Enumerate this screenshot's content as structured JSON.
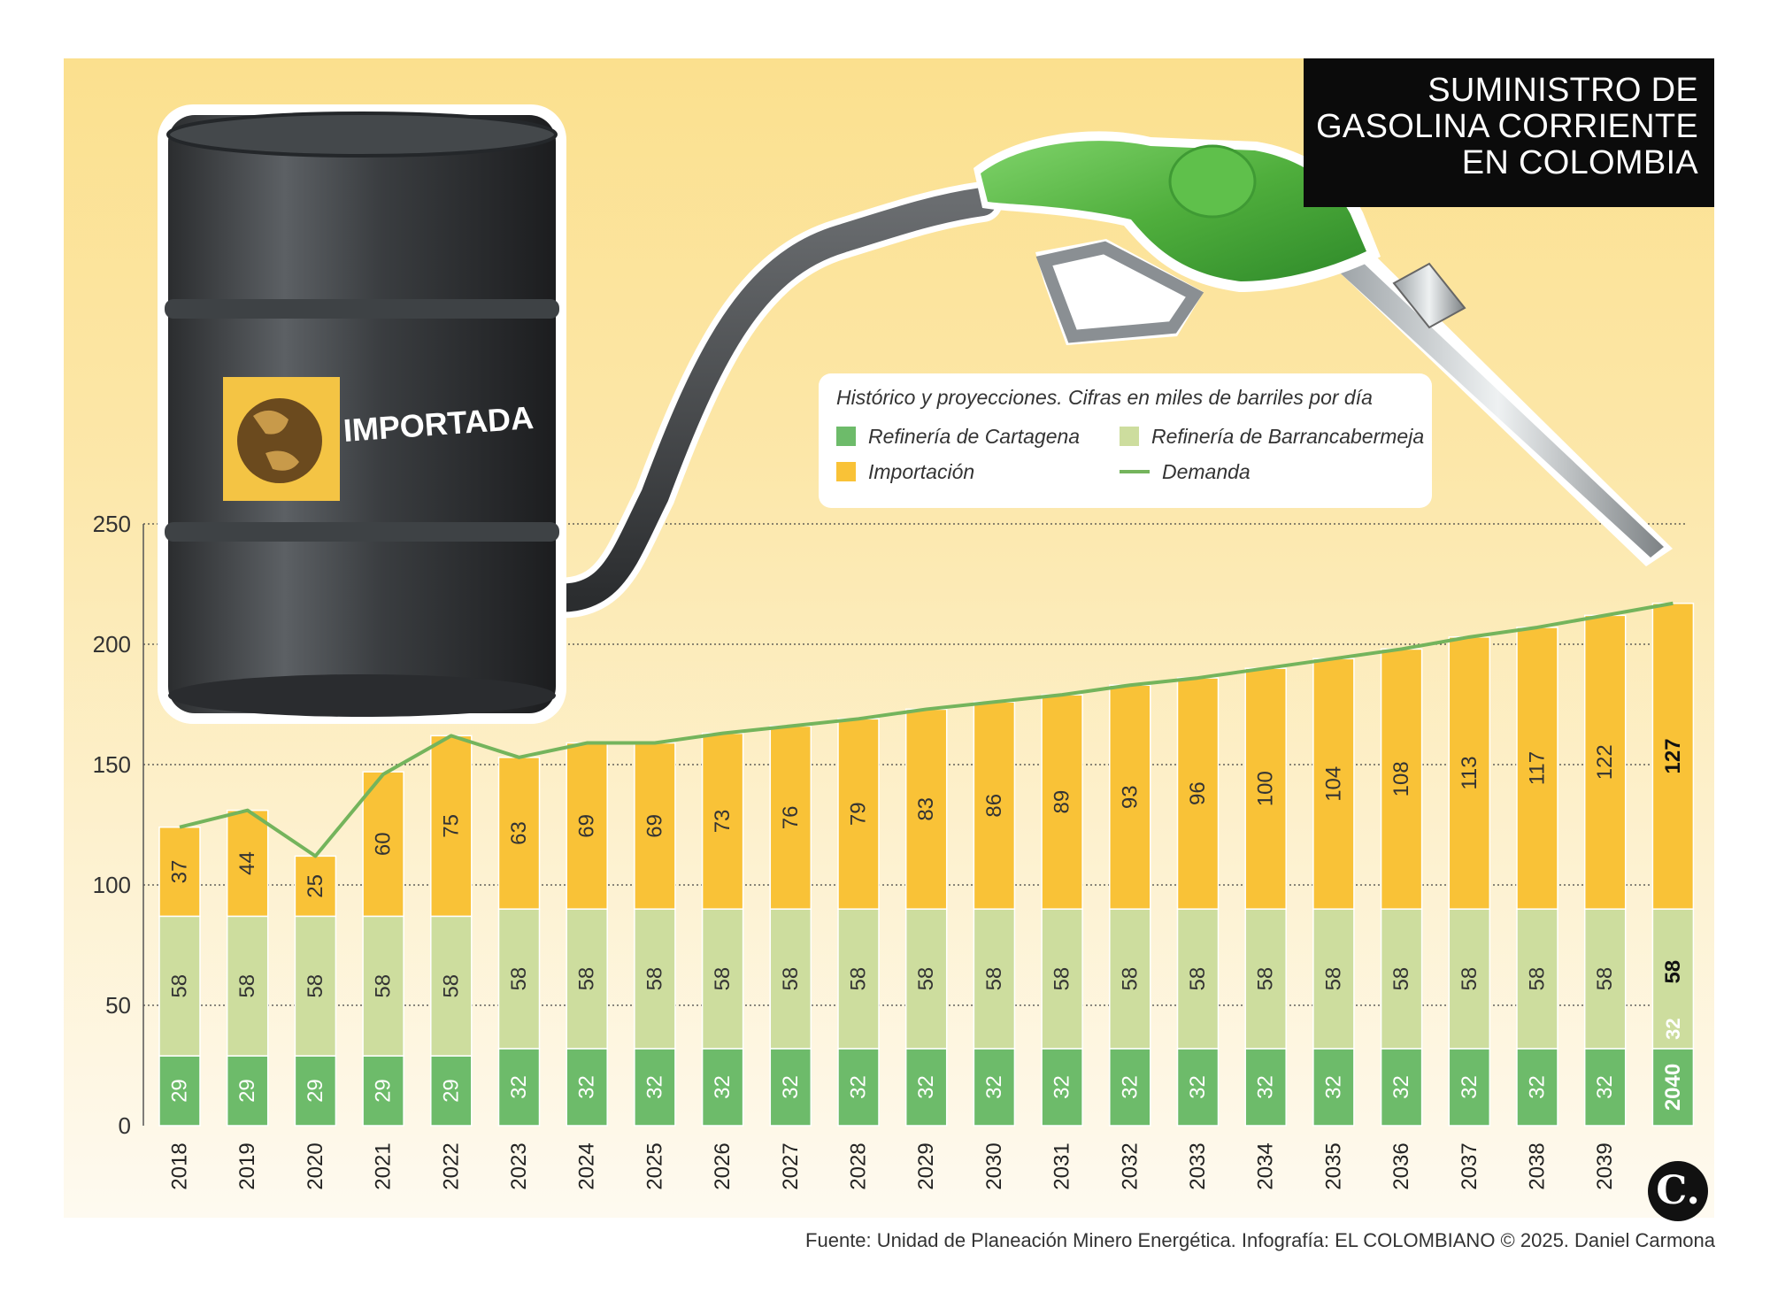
{
  "header": {
    "title_lines": [
      "SUMINISTRO DE",
      "GASOLINA CORRIENTE",
      "EN COLOMBIA"
    ]
  },
  "illustration": {
    "barrel_label": "IMPORTADA",
    "barrel_icon": "globe-icon",
    "nozzle_icon": "fuel-nozzle-icon"
  },
  "legend": {
    "note": "Histórico y proyecciones. Cifras en miles de barriles por día",
    "items": [
      {
        "label": "Refinería de Cartagena",
        "color": "#6dbb6a",
        "kind": "box"
      },
      {
        "label": "Refinería de Barrancabermeja",
        "color": "#cddd9e",
        "kind": "box"
      },
      {
        "label": "Importación",
        "color": "#f9c237",
        "kind": "box"
      },
      {
        "label": "Demanda",
        "color": "#74b45c",
        "kind": "line"
      }
    ]
  },
  "chart_data": {
    "type": "bar",
    "stacked": true,
    "categories": [
      "2018",
      "2019",
      "2020",
      "2021",
      "2022",
      "2023",
      "2024",
      "2025",
      "2026",
      "2027",
      "2028",
      "2029",
      "2030",
      "2031",
      "2032",
      "2033",
      "2034",
      "2035",
      "2036",
      "2037",
      "2038",
      "2039",
      "2040"
    ],
    "series": [
      {
        "name": "Refinería de Cartagena",
        "color": "#6dbb6a",
        "values": [
          29,
          29,
          29,
          29,
          29,
          32,
          32,
          32,
          32,
          32,
          32,
          32,
          32,
          32,
          32,
          32,
          32,
          32,
          32,
          32,
          32,
          32,
          32
        ]
      },
      {
        "name": "Refinería de Barrancabermeja",
        "color": "#cddd9e",
        "values": [
          58,
          58,
          58,
          58,
          58,
          58,
          58,
          58,
          58,
          58,
          58,
          58,
          58,
          58,
          58,
          58,
          58,
          58,
          58,
          58,
          58,
          58,
          58
        ]
      },
      {
        "name": "Importación",
        "color": "#f9c237",
        "values": [
          37,
          44,
          25,
          60,
          75,
          63,
          69,
          69,
          73,
          76,
          79,
          83,
          86,
          89,
          93,
          96,
          100,
          104,
          108,
          113,
          117,
          122,
          127
        ]
      }
    ],
    "line": {
      "name": "Demanda",
      "color": "#74b45c",
      "values": [
        124,
        131,
        112,
        146,
        162,
        153,
        159,
        159,
        163,
        166,
        169,
        173,
        176,
        179,
        183,
        186,
        190,
        194,
        198,
        203,
        207,
        212,
        217
      ]
    },
    "yticks": [
      0,
      50,
      100,
      150,
      200,
      250
    ],
    "ylim": [
      0,
      250
    ],
    "grid": true,
    "highlight_last": true
  },
  "footer": {
    "source": "Fuente: Unidad de Planeación Minero Energética. Infografía: EL COLOMBIANO © 2025. Daniel Carmona",
    "logo_text": "C."
  }
}
